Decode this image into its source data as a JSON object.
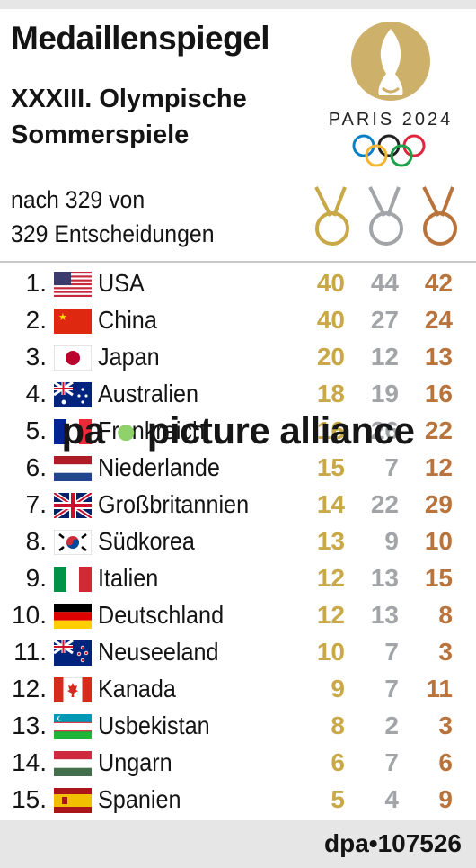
{
  "header": {
    "title": "Medaillenspiegel",
    "subtitle_line1": "XXXIII. Olympische",
    "subtitle_line2": "Sommerspiele",
    "note_line1": "nach 329 von",
    "note_line2": "329 Entscheidungen"
  },
  "logo": {
    "text": "PARIS 2024",
    "icon": "paris-2024-flame-logo"
  },
  "colors": {
    "gold": "#c9a848",
    "silver": "#a2a4a7",
    "bronze": "#b8743c"
  },
  "table": {
    "columns": [
      "Gold",
      "Silber",
      "Bronze"
    ],
    "rows": [
      {
        "rank": "1.",
        "country": "USA",
        "flag": "us-flag",
        "gold": "40",
        "silver": "44",
        "bronze": "42"
      },
      {
        "rank": "2.",
        "country": "China",
        "flag": "china-flag",
        "gold": "40",
        "silver": "27",
        "bronze": "24"
      },
      {
        "rank": "3.",
        "country": "Japan",
        "flag": "japan-flag",
        "gold": "20",
        "silver": "12",
        "bronze": "13"
      },
      {
        "rank": "4.",
        "country": "Australien",
        "flag": "australia-flag",
        "gold": "18",
        "silver": "19",
        "bronze": "16"
      },
      {
        "rank": "5.",
        "country": "Frankreich",
        "flag": "france-flag",
        "gold": "16",
        "silver": "26",
        "bronze": "22"
      },
      {
        "rank": "6.",
        "country": "Niederlande",
        "flag": "netherlands-flag",
        "gold": "15",
        "silver": "7",
        "bronze": "12"
      },
      {
        "rank": "7.",
        "country": "Großbritannien",
        "flag": "uk-flag",
        "gold": "14",
        "silver": "22",
        "bronze": "29"
      },
      {
        "rank": "8.",
        "country": "Südkorea",
        "flag": "south-korea-flag",
        "gold": "13",
        "silver": "9",
        "bronze": "10"
      },
      {
        "rank": "9.",
        "country": "Italien",
        "flag": "italy-flag",
        "gold": "12",
        "silver": "13",
        "bronze": "15"
      },
      {
        "rank": "10.",
        "country": "Deutschland",
        "flag": "germany-flag",
        "gold": "12",
        "silver": "13",
        "bronze": "8"
      },
      {
        "rank": "11.",
        "country": "Neuseeland",
        "flag": "new-zealand-flag",
        "gold": "10",
        "silver": "7",
        "bronze": "3"
      },
      {
        "rank": "12.",
        "country": "Kanada",
        "flag": "canada-flag",
        "gold": "9",
        "silver": "7",
        "bronze": "11"
      },
      {
        "rank": "13.",
        "country": "Usbekistan",
        "flag": "uzbekistan-flag",
        "gold": "8",
        "silver": "2",
        "bronze": "3"
      },
      {
        "rank": "14.",
        "country": "Ungarn",
        "flag": "hungary-flag",
        "gold": "6",
        "silver": "7",
        "bronze": "6"
      },
      {
        "rank": "15.",
        "country": "Spanien",
        "flag": "spain-flag",
        "gold": "5",
        "silver": "4",
        "bronze": "9"
      }
    ]
  },
  "watermark": {
    "pa": "pa",
    "rest": "picture alliance"
  },
  "footer": {
    "credit": "dpa•107526"
  }
}
